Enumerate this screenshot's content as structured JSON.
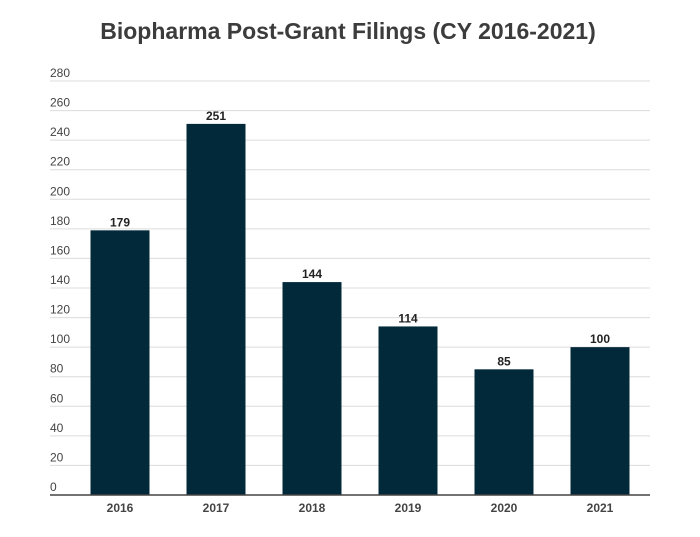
{
  "chart_data": {
    "type": "bar",
    "title": "Biopharma Post-Grant Filings (CY 2016-2021)",
    "xlabel": "",
    "ylabel": "",
    "categories": [
      "2016",
      "2017",
      "2018",
      "2019",
      "2020",
      "2021"
    ],
    "values": [
      179,
      251,
      144,
      114,
      85,
      100
    ],
    "data_labels": [
      "179",
      "251",
      "144",
      "114",
      "85",
      "100"
    ],
    "ylim": [
      0,
      280
    ],
    "y_ticks": [
      "0",
      "20",
      "40",
      "60",
      "80",
      "100",
      "120",
      "140",
      "160",
      "180",
      "200",
      "220",
      "240",
      "260",
      "280"
    ],
    "grid": true,
    "legend": "none",
    "colors": {
      "bar": "#02293a",
      "grid": "#dcdcdc",
      "axis": "#444444"
    }
  }
}
